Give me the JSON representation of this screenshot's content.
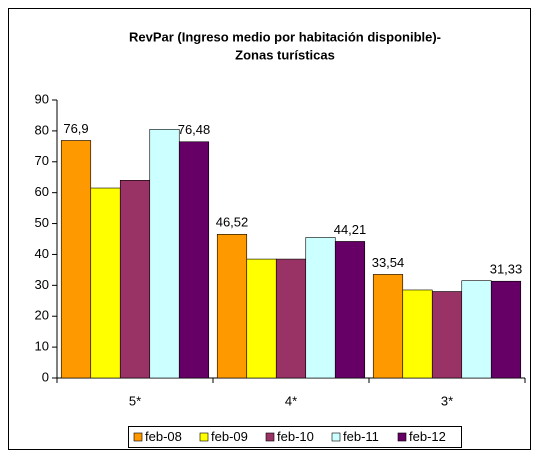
{
  "chart_data": {
    "type": "bar",
    "title": [
      "RevPar (Ingreso medio por habitación disponible)-",
      "Zonas turísticas"
    ],
    "categories": [
      "5*",
      "4*",
      "3*"
    ],
    "series": [
      {
        "name": "feb-08",
        "color": "#ff9900",
        "values": [
          76.9,
          46.52,
          33.54
        ],
        "value_labels": [
          "76,9",
          "46,52",
          "33,54"
        ]
      },
      {
        "name": "feb-09",
        "color": "#ffff00",
        "values": [
          61.5,
          38.5,
          28.5
        ]
      },
      {
        "name": "feb-10",
        "color": "#993366",
        "values": [
          64,
          38.5,
          28
        ]
      },
      {
        "name": "feb-11",
        "color": "#ccffff",
        "values": [
          80.5,
          45.5,
          31.5
        ]
      },
      {
        "name": "feb-12",
        "color": "#660066",
        "values": [
          76.48,
          44.21,
          31.33
        ],
        "value_labels": [
          "76,48",
          "44,21",
          "31,33"
        ]
      }
    ],
    "ylim": [
      0,
      90
    ],
    "yticks": [
      0,
      10,
      20,
      30,
      40,
      50,
      60,
      70,
      80,
      90
    ],
    "legend": "bottom"
  }
}
